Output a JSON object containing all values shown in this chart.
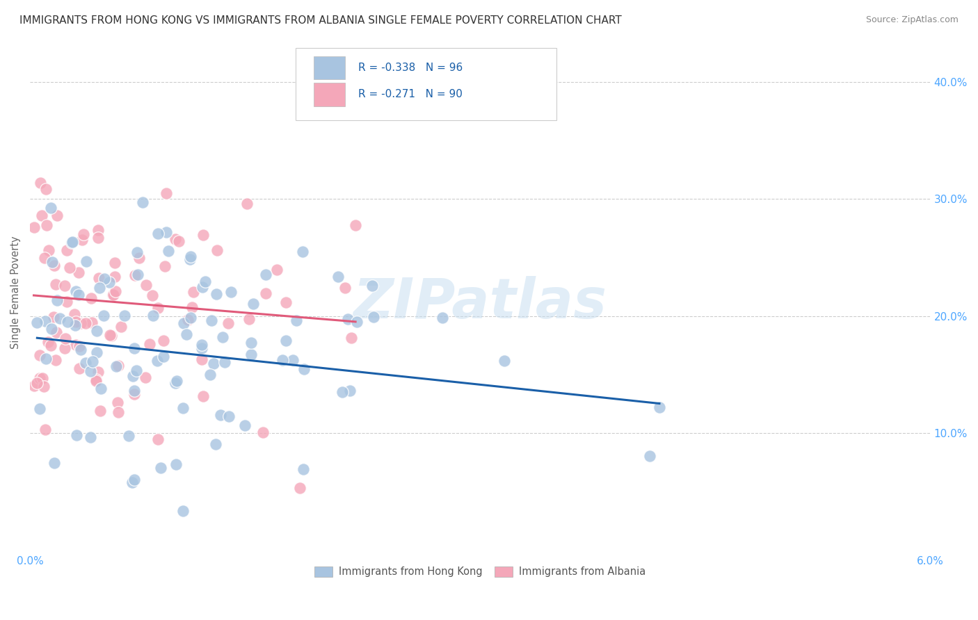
{
  "title": "IMMIGRANTS FROM HONG KONG VS IMMIGRANTS FROM ALBANIA SINGLE FEMALE POVERTY CORRELATION CHART",
  "source": "Source: ZipAtlas.com",
  "ylabel": "Single Female Poverty",
  "xmin": 0.0,
  "xmax": 0.06,
  "ymin": 0.0,
  "ymax": 0.42,
  "yticks": [
    0.1,
    0.2,
    0.3,
    0.4
  ],
  "ytick_labels": [
    "10.0%",
    "20.0%",
    "30.0%",
    "40.0%"
  ],
  "hk_color": "#a8c4e0",
  "albania_color": "#f4a7b9",
  "hk_line_color": "#1a5fa8",
  "albania_line_color": "#e05a7a",
  "hk_R": -0.338,
  "hk_N": 96,
  "albania_R": -0.271,
  "albania_N": 90,
  "legend_label_hk": "Immigrants from Hong Kong",
  "legend_label_albania": "Immigrants from Albania",
  "watermark": "ZIPatlas",
  "background_color": "#ffffff",
  "grid_color": "#cccccc",
  "title_color": "#333333",
  "axis_color": "#4da6ff",
  "legend_text_color": "#1a5fa8",
  "title_fontsize": 11,
  "seed": 42,
  "hk_line_intercept": 0.182,
  "hk_line_slope": -1.35,
  "albania_line_intercept": 0.218,
  "albania_line_slope": -1.05
}
